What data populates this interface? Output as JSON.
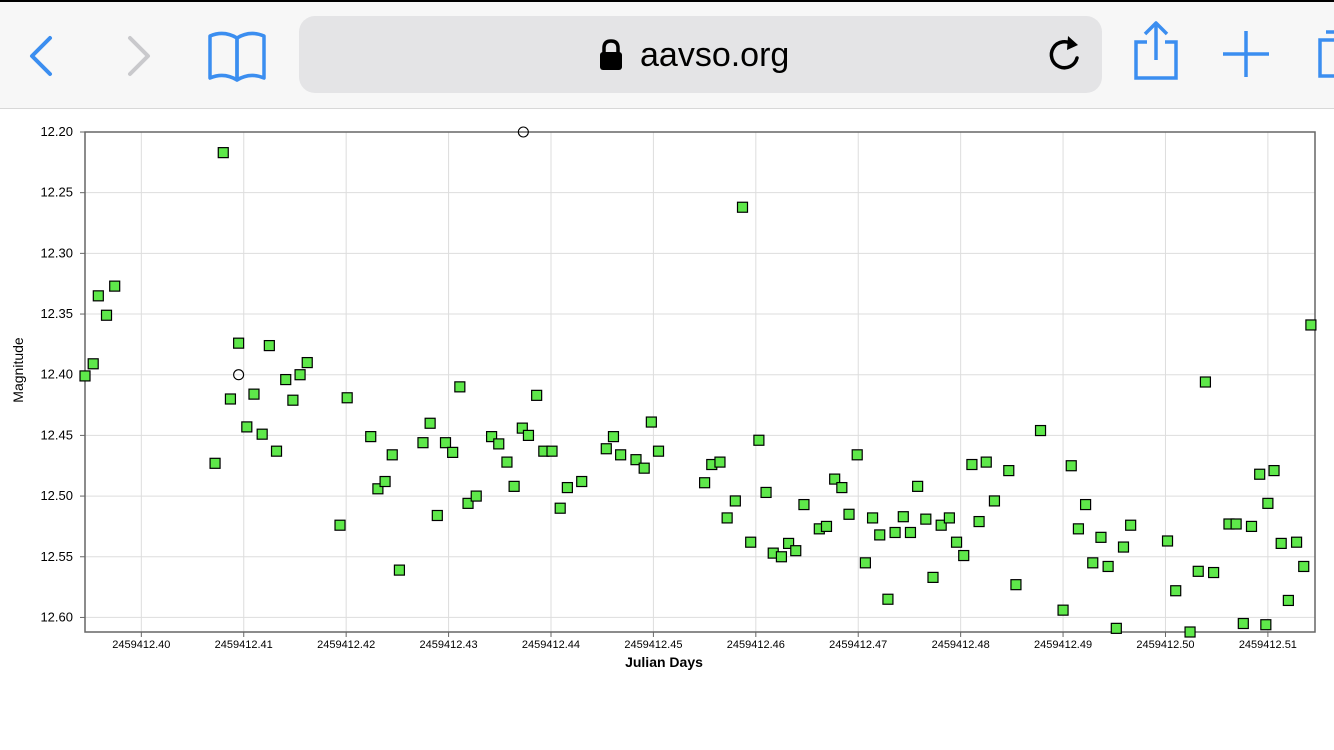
{
  "browser": {
    "address_host": "aavso.org",
    "icons": [
      "back-chevron-icon",
      "forward-chevron-icon",
      "bookmarks-book-icon",
      "lock-icon",
      "reload-icon",
      "share-icon",
      "new-tab-plus-icon",
      "tabs-icon"
    ],
    "accent_color": "#3b8ef0"
  },
  "chart_data": {
    "type": "scatter",
    "title": "",
    "xlabel": "Julian Days",
    "ylabel": "Magnitude",
    "xlim": [
      2459412.3945,
      2459412.5146
    ],
    "ylim": [
      12.2,
      12.612
    ],
    "y_inverted": true,
    "grid": true,
    "x_ticks": [
      "2459412.40",
      "2459412.41",
      "2459412.42",
      "2459412.43",
      "2459412.44",
      "2459412.45",
      "2459412.46",
      "2459412.47",
      "2459412.48",
      "2459412.49",
      "2459412.50",
      "2459412.51"
    ],
    "y_ticks": [
      "12.20",
      "12.25",
      "12.30",
      "12.35",
      "12.40",
      "12.45",
      "12.50",
      "12.55",
      "12.60"
    ],
    "marker_color": "#5ee84a",
    "series": [
      {
        "marker": "square",
        "points": [
          [
            2459412.3945,
            12.401
          ],
          [
            2459412.3953,
            12.391
          ],
          [
            2459412.3958,
            12.335
          ],
          [
            2459412.3966,
            12.351
          ],
          [
            2459412.3974,
            12.327
          ],
          [
            2459412.4072,
            12.473
          ],
          [
            2459412.408,
            12.217
          ],
          [
            2459412.4087,
            12.42
          ],
          [
            2459412.4095,
            12.374
          ],
          [
            2459412.4103,
            12.443
          ],
          [
            2459412.411,
            12.416
          ],
          [
            2459412.4118,
            12.449
          ],
          [
            2459412.4125,
            12.376
          ],
          [
            2459412.4132,
            12.463
          ],
          [
            2459412.4141,
            12.404
          ],
          [
            2459412.4148,
            12.421
          ],
          [
            2459412.4155,
            12.4
          ],
          [
            2459412.4162,
            12.39
          ],
          [
            2459412.4194,
            12.524
          ],
          [
            2459412.4201,
            12.419
          ],
          [
            2459412.4224,
            12.451
          ],
          [
            2459412.4231,
            12.494
          ],
          [
            2459412.4238,
            12.488
          ],
          [
            2459412.4245,
            12.466
          ],
          [
            2459412.4252,
            12.561
          ],
          [
            2459412.4275,
            12.456
          ],
          [
            2459412.4282,
            12.44
          ],
          [
            2459412.4289,
            12.516
          ],
          [
            2459412.4297,
            12.456
          ],
          [
            2459412.4304,
            12.464
          ],
          [
            2459412.4311,
            12.41
          ],
          [
            2459412.4319,
            12.506
          ],
          [
            2459412.4327,
            12.5
          ],
          [
            2459412.4342,
            12.451
          ],
          [
            2459412.4349,
            12.457
          ],
          [
            2459412.4357,
            12.472
          ],
          [
            2459412.4364,
            12.492
          ],
          [
            2459412.4372,
            12.444
          ],
          [
            2459412.4378,
            12.45
          ],
          [
            2459412.4386,
            12.417
          ],
          [
            2459412.4393,
            12.463
          ],
          [
            2459412.4401,
            12.463
          ],
          [
            2459412.4409,
            12.51
          ],
          [
            2459412.4416,
            12.493
          ],
          [
            2459412.443,
            12.488
          ],
          [
            2459412.4454,
            12.461
          ],
          [
            2459412.4461,
            12.451
          ],
          [
            2459412.4468,
            12.466
          ],
          [
            2459412.4483,
            12.47
          ],
          [
            2459412.4491,
            12.477
          ],
          [
            2459412.4498,
            12.439
          ],
          [
            2459412.4505,
            12.463
          ],
          [
            2459412.455,
            12.489
          ],
          [
            2459412.4557,
            12.474
          ],
          [
            2459412.4565,
            12.472
          ],
          [
            2459412.4572,
            12.518
          ],
          [
            2459412.458,
            12.504
          ],
          [
            2459412.4587,
            12.262
          ],
          [
            2459412.4595,
            12.538
          ],
          [
            2459412.4603,
            12.454
          ],
          [
            2459412.461,
            12.497
          ],
          [
            2459412.4617,
            12.547
          ],
          [
            2459412.4625,
            12.55
          ],
          [
            2459412.4632,
            12.539
          ],
          [
            2459412.4639,
            12.545
          ],
          [
            2459412.4647,
            12.507
          ],
          [
            2459412.4662,
            12.527
          ],
          [
            2459412.4669,
            12.525
          ],
          [
            2459412.4677,
            12.486
          ],
          [
            2459412.4684,
            12.493
          ],
          [
            2459412.4691,
            12.515
          ],
          [
            2459412.4699,
            12.466
          ],
          [
            2459412.4707,
            12.555
          ],
          [
            2459412.4714,
            12.518
          ],
          [
            2459412.4721,
            12.532
          ],
          [
            2459412.4729,
            12.585
          ],
          [
            2459412.4736,
            12.53
          ],
          [
            2459412.4744,
            12.517
          ],
          [
            2459412.4751,
            12.53
          ],
          [
            2459412.4758,
            12.492
          ],
          [
            2459412.4766,
            12.519
          ],
          [
            2459412.4773,
            12.567
          ],
          [
            2459412.4781,
            12.524
          ],
          [
            2459412.4789,
            12.518
          ],
          [
            2459412.4796,
            12.538
          ],
          [
            2459412.4803,
            12.549
          ],
          [
            2459412.4811,
            12.474
          ],
          [
            2459412.4818,
            12.521
          ],
          [
            2459412.4825,
            12.472
          ],
          [
            2459412.4833,
            12.504
          ],
          [
            2459412.4847,
            12.479
          ],
          [
            2459412.4854,
            12.573
          ],
          [
            2459412.4878,
            12.446
          ],
          [
            2459412.49,
            12.594
          ],
          [
            2459412.4908,
            12.475
          ],
          [
            2459412.4915,
            12.527
          ],
          [
            2459412.4922,
            12.507
          ],
          [
            2459412.4929,
            12.555
          ],
          [
            2459412.4937,
            12.534
          ],
          [
            2459412.4944,
            12.558
          ],
          [
            2459412.4952,
            12.609
          ],
          [
            2459412.4959,
            12.542
          ],
          [
            2459412.4966,
            12.524
          ],
          [
            2459412.5002,
            12.537
          ],
          [
            2459412.501,
            12.578
          ],
          [
            2459412.5024,
            12.612
          ],
          [
            2459412.5032,
            12.562
          ],
          [
            2459412.5039,
            12.406
          ],
          [
            2459412.5047,
            12.563
          ],
          [
            2459412.5062,
            12.523
          ],
          [
            2459412.5069,
            12.523
          ],
          [
            2459412.5076,
            12.605
          ],
          [
            2459412.5084,
            12.525
          ],
          [
            2459412.5092,
            12.482
          ],
          [
            2459412.5098,
            12.606
          ],
          [
            2459412.51,
            12.506
          ],
          [
            2459412.5106,
            12.479
          ],
          [
            2459412.5113,
            12.539
          ],
          [
            2459412.512,
            12.586
          ],
          [
            2459412.5128,
            12.538
          ],
          [
            2459412.5135,
            12.558
          ],
          [
            2459412.5142,
            12.359
          ]
        ]
      },
      {
        "marker": "open-circle",
        "points": [
          [
            2459412.4095,
            12.4
          ],
          [
            2459412.4373,
            12.2
          ]
        ]
      }
    ]
  }
}
